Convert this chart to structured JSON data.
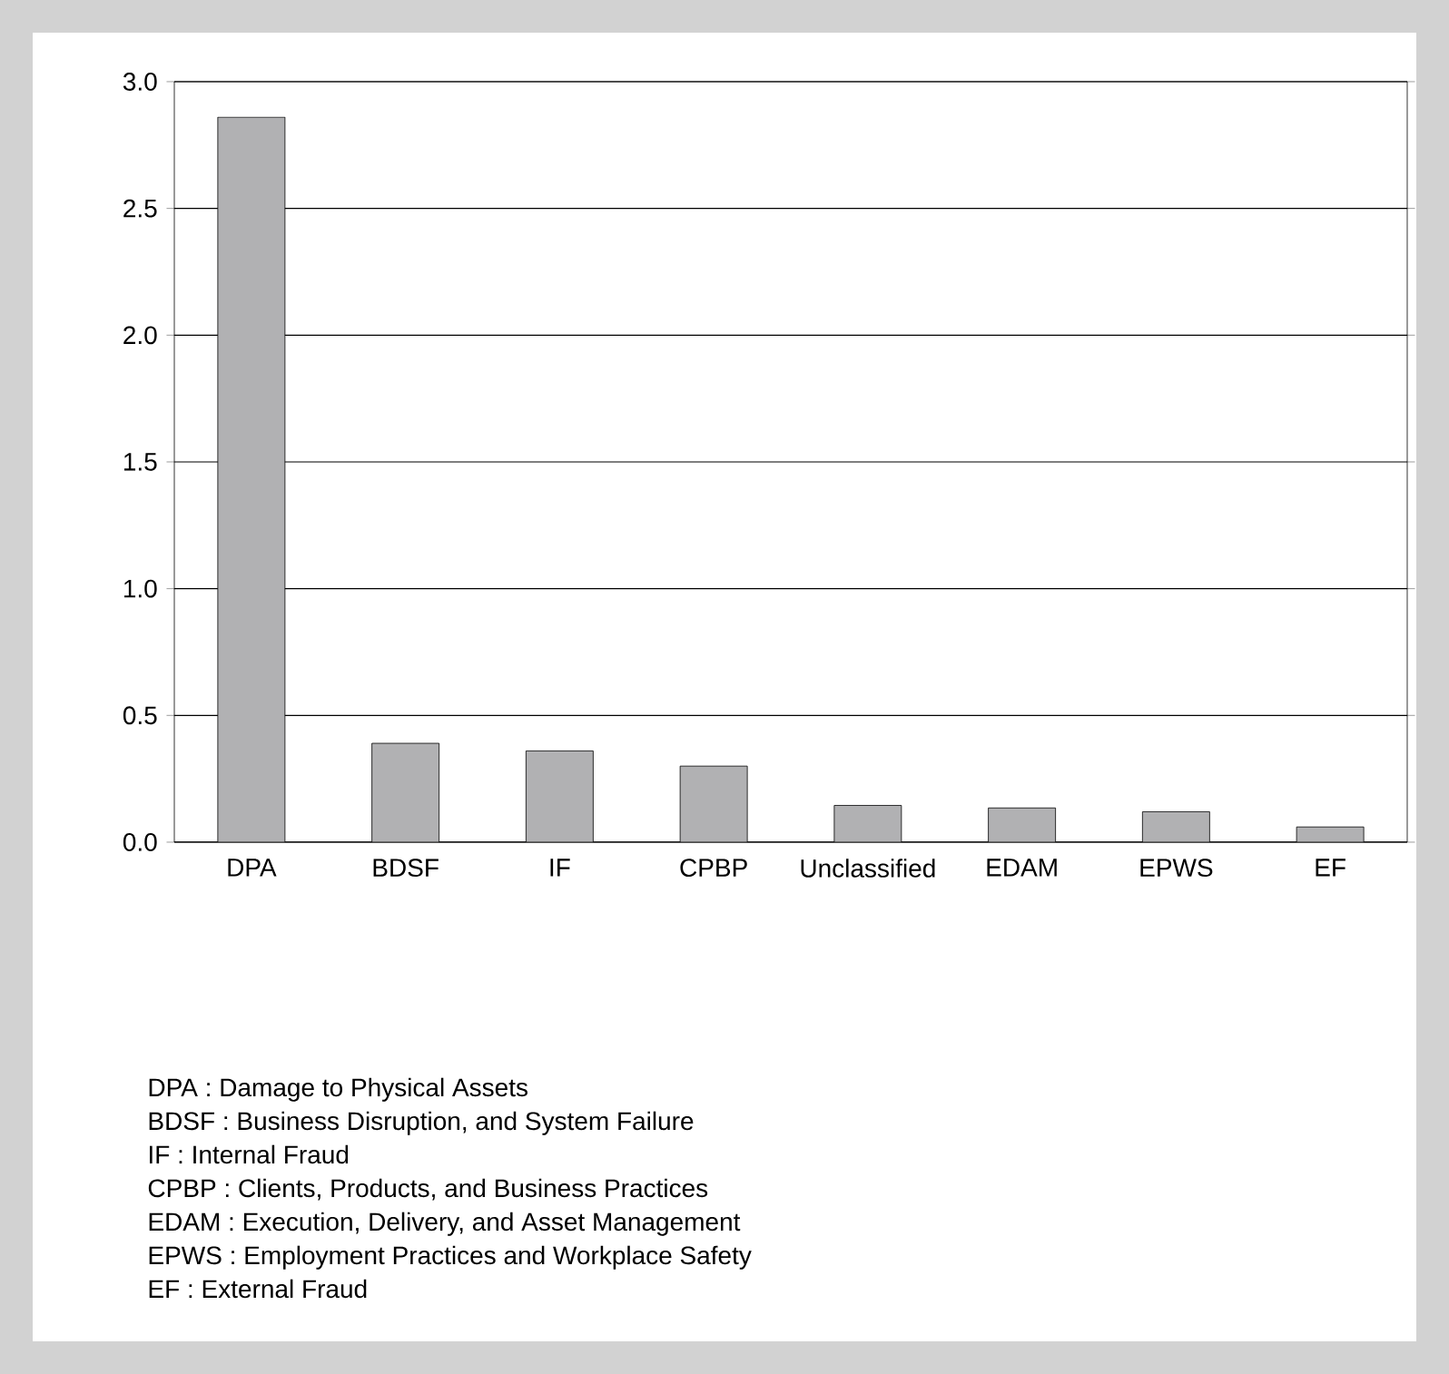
{
  "chart_data": {
    "type": "bar",
    "categories": [
      "DPA",
      "BDSF",
      "IF",
      "CPBP",
      "Unclassified",
      "EDAM",
      "EPWS",
      "EF"
    ],
    "values": [
      2.86,
      0.39,
      0.36,
      0.3,
      0.145,
      0.135,
      0.12,
      0.06
    ],
    "color": "#b1b1b3",
    "ylim": [
      0,
      3
    ],
    "yticks": [
      {
        "value": 0,
        "label": "0.0"
      },
      {
        "value": 0.5,
        "label": "0.5"
      },
      {
        "value": 1,
        "label": "1.0"
      },
      {
        "value": 1.5,
        "label": "1.5"
      },
      {
        "value": 2,
        "label": "2.0"
      },
      {
        "value": 2.5,
        "label": "2.5"
      },
      {
        "value": 3,
        "label": "3.0"
      }
    ],
    "grid": "y",
    "annotations": [
      "DPA   : Damage to Physical Assets",
      "BDSF : Business Disruption, and System Failure",
      "IF      : Internal Fraud",
      "CPBP : Clients, Products, and Business Practices",
      "EDAM : Execution, Delivery, and Asset Management",
      "EPWS : Employment Practices and Workplace Safety",
      "EF     : External Fraud"
    ]
  }
}
